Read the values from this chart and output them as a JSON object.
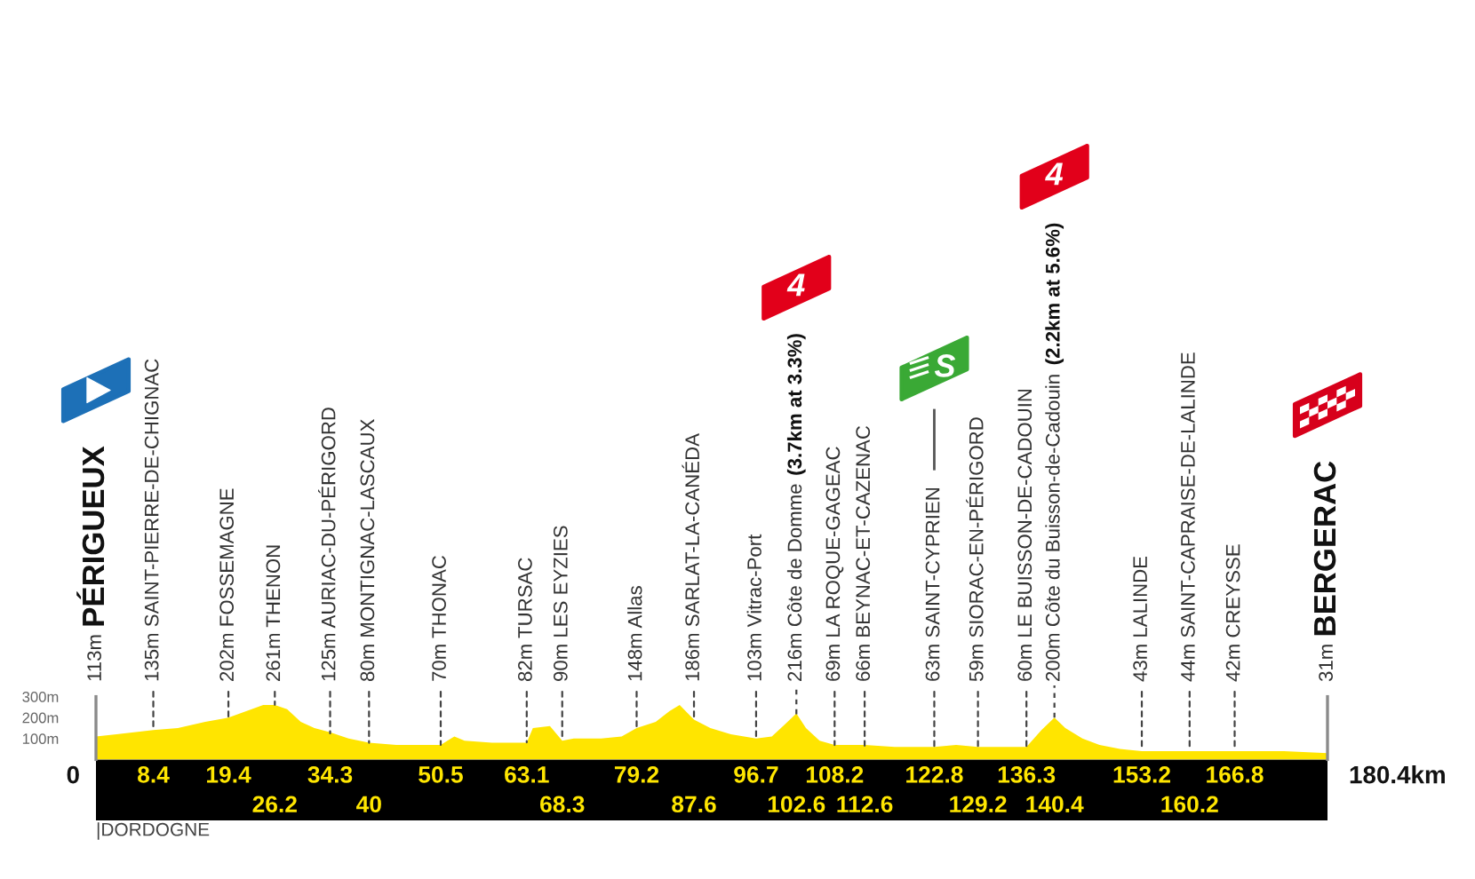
{
  "chart_data": {
    "type": "area",
    "x": [
      0,
      3,
      8.4,
      12,
      16,
      19.4,
      22,
      24.5,
      26.2,
      28,
      30,
      32,
      34.3,
      37,
      40,
      44,
      48,
      50.5,
      52.5,
      54,
      58,
      61,
      63.1,
      64,
      66.5,
      68.3,
      70,
      74,
      77,
      79.2,
      82,
      84,
      85.5,
      87.6,
      90,
      93,
      96.7,
      99,
      101,
      102.6,
      104,
      106,
      108.2,
      112.6,
      117,
      122.8,
      126,
      129.2,
      133,
      136.3,
      138.5,
      140.4,
      142,
      144.5,
      147,
      150,
      153.2,
      160.2,
      166.8,
      174,
      180.4
    ],
    "values": [
      110,
      120,
      140,
      150,
      180,
      200,
      230,
      260,
      260,
      240,
      180,
      150,
      130,
      100,
      80,
      70,
      70,
      70,
      110,
      90,
      80,
      80,
      80,
      150,
      160,
      90,
      100,
      100,
      110,
      150,
      180,
      230,
      260,
      190,
      150,
      120,
      100,
      110,
      170,
      220,
      150,
      90,
      70,
      70,
      60,
      60,
      70,
      60,
      60,
      60,
      140,
      200,
      150,
      100,
      70,
      50,
      40,
      40,
      40,
      40,
      30
    ],
    "color": "#ffe500",
    "xlim": [
      0,
      180.4
    ],
    "xticks": [
      8.4,
      19.4,
      34.3,
      50.5,
      63.1,
      79.2,
      96.7,
      108.2,
      122.8,
      136.3,
      153.2,
      166.8
    ],
    "ylim": [
      0,
      300
    ],
    "yticks": [
      {
        "value": 100,
        "label": "100m"
      },
      {
        "value": 200,
        "label": "200m"
      },
      {
        "value": 300,
        "label": "300m"
      }
    ],
    "annotations": [
      "|DORDOGNE",
      {
        "text": "113m PÉRIGUEUX",
        "x": 0,
        "y": 113
      },
      {
        "text": "135m SAINT-PIERRE-DE-CHIGNAC",
        "x": 8.4,
        "y": 135
      },
      {
        "text": "202m FOSSEMAGNE",
        "x": 19.4,
        "y": 202
      },
      {
        "text": "261m THENON",
        "x": 26.2,
        "y": 261
      },
      {
        "text": "125m AURIAC-DU-PÉRIGORD",
        "x": 34.3,
        "y": 125
      },
      {
        "text": "80m MONTIGNAC-LASCAUX",
        "x": 40,
        "y": 80
      },
      {
        "text": "70m THONAC",
        "x": 50.5,
        "y": 70
      },
      {
        "text": "82m TURSAC",
        "x": 63.1,
        "y": 82
      },
      {
        "text": "90m LES EYZIES",
        "x": 68.3,
        "y": 90
      },
      {
        "text": "148m Allas",
        "x": 79.2,
        "y": 148
      },
      {
        "text": "186m SARLAT-LA-CANÉDA",
        "x": 87.6,
        "y": 186
      },
      {
        "text": "103m Vitrac-Port",
        "x": 96.7,
        "y": 103
      },
      {
        "text": "216m Côte de Domme (3.7km at 3.3%)",
        "x": 102.6,
        "y": 216
      },
      "4",
      {
        "text": "69m LA ROQUE-GAGEAC",
        "x": 108.2,
        "y": 69
      },
      {
        "text": "66m BEYNAC-ET-CAZENAC",
        "x": 112.6,
        "y": 66
      },
      {
        "text": "63m SAINT-CYPRIEN",
        "x": 122.8,
        "y": 63
      },
      "S",
      {
        "text": "59m SIORAC-EN-PÉRIGORD",
        "x": 129.2,
        "y": 59
      },
      {
        "text": "60m LE BUISSON-DE-CADOUIN",
        "x": 136.3,
        "y": 60
      },
      {
        "text": "200m Côte du Buisson-de-Cadouin (2.2km at 5.6%)",
        "x": 140.4,
        "y": 200
      },
      "4",
      {
        "text": "43m LALINDE",
        "x": 153.2,
        "y": 43
      },
      {
        "text": "44m SAINT-CAPRAISE-DE-LALINDE",
        "x": 160.2,
        "y": 44
      },
      {
        "text": "42m CREYSSE",
        "x": 166.8,
        "y": 42
      },
      {
        "text": "31m BERGERAC",
        "x": 180.4,
        "y": 31
      },
      {
        "text": "0",
        "x": 0,
        "y": 0
      },
      {
        "text": "26.2",
        "x": 26.2,
        "y": 0
      },
      {
        "text": "40",
        "x": 40,
        "y": 0
      },
      {
        "text": "68.3",
        "x": 68.3,
        "y": 0
      },
      {
        "text": "87.6",
        "x": 87.6,
        "y": 0
      },
      {
        "text": "102.6",
        "x": 102.6,
        "y": 0
      },
      {
        "text": "112.6",
        "x": 112.6,
        "y": 0
      },
      {
        "text": "129.2",
        "x": 129.2,
        "y": 0
      },
      {
        "text": "140.4",
        "x": 140.4,
        "y": 0
      },
      {
        "text": "160.2",
        "x": 160.2,
        "y": 0
      },
      {
        "text": "180.4km",
        "x": 180.4,
        "y": 0
      }
    ]
  }
}
